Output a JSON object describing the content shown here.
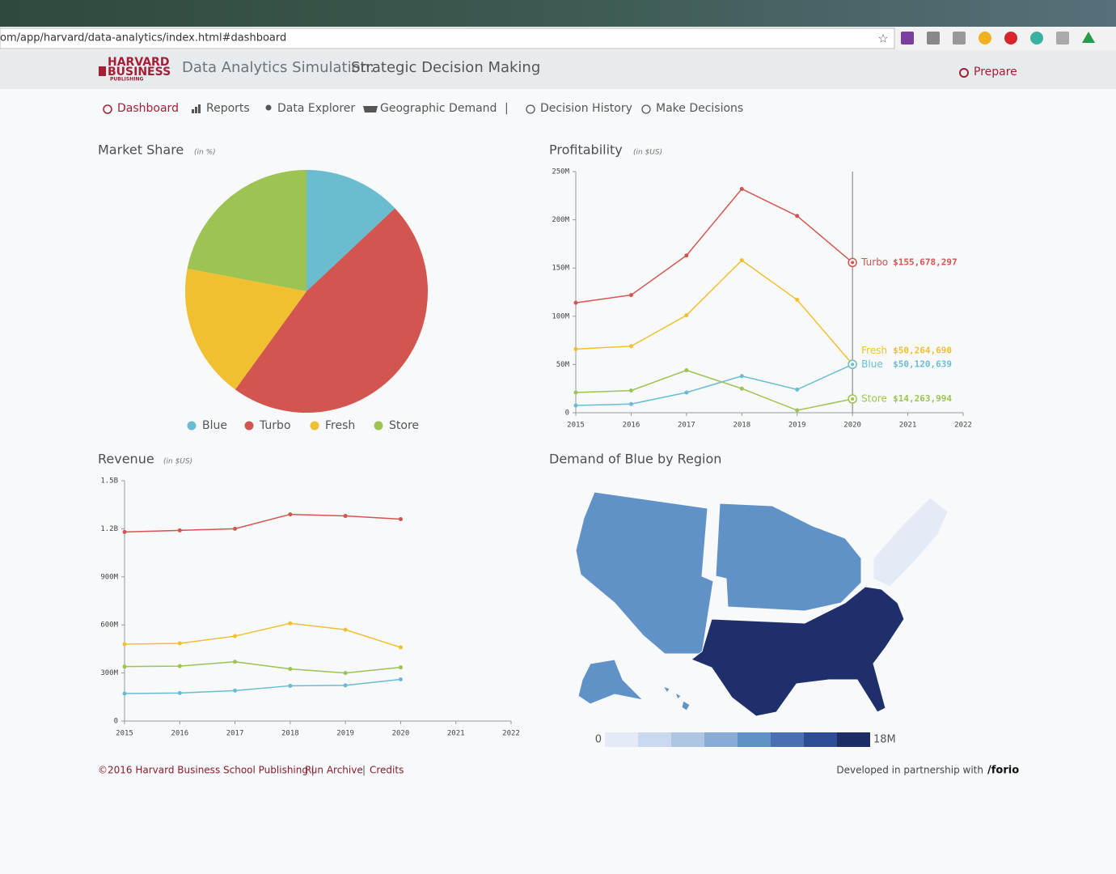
{
  "browser": {
    "url": "om/app/harvard/data-analytics/index.html#dashboard"
  },
  "header": {
    "logo": [
      "HARVARD",
      "BUSINESS",
      "PUBLISHING"
    ],
    "title": "Data Analytics Simulation:",
    "subtitle": "Strategic Decision Making",
    "action": "Prepare"
  },
  "nav": {
    "items": [
      "Dashboard",
      "Reports",
      "Data Explorer",
      "Geographic Demand",
      "|",
      "Decision History",
      "Make Decisions"
    ]
  },
  "chart_data": [
    {
      "type": "pie",
      "title": "Market Share",
      "subtitle": "(in %)",
      "categories": [
        "Blue",
        "Turbo",
        "Fresh",
        "Store"
      ],
      "values": [
        13,
        47,
        18,
        22
      ],
      "colors": [
        "#6bbcd1",
        "#d2554f",
        "#f0c030",
        "#9dc352"
      ]
    },
    {
      "type": "line",
      "title": "Profitability",
      "subtitle": "(in $US)",
      "x": [
        2015,
        2016,
        2017,
        2018,
        2019,
        2020
      ],
      "xlim": [
        2015,
        2022
      ],
      "xticks": [
        2015,
        2016,
        2017,
        2018,
        2019,
        2020,
        2021,
        2022
      ],
      "ylim": [
        0,
        250000000
      ],
      "yticks": [
        0,
        {
          "value": 50000000,
          "label": "50M"
        },
        {
          "value": 100000000,
          "label": "100M"
        },
        {
          "value": 150000000,
          "label": "150M"
        },
        {
          "value": 200000000,
          "label": "200M"
        },
        {
          "value": 250000000,
          "label": "250M"
        }
      ],
      "cursor_x": 2020,
      "series": [
        {
          "name": "Turbo",
          "color": "#d2554f",
          "values": [
            114000000,
            122000000,
            163000000,
            232000000,
            204000000,
            155678297
          ],
          "value_labels": [
            null,
            null,
            null,
            null,
            null,
            "$155,678,297"
          ]
        },
        {
          "name": "Fresh",
          "color": "#f0c030",
          "values": [
            66000000,
            69000000,
            101000000,
            158000000,
            117000000,
            50264690
          ],
          "value_labels": [
            null,
            null,
            null,
            null,
            null,
            "$50,264,690"
          ]
        },
        {
          "name": "Blue",
          "color": "#6bbcd1",
          "values": [
            7500000,
            9000000,
            21000000,
            38000000,
            24000000,
            50120639
          ],
          "value_labels": [
            null,
            null,
            null,
            null,
            null,
            "$50,120,639"
          ]
        },
        {
          "name": "Store",
          "color": "#9dc352",
          "values": [
            21000000,
            23000000,
            44000000,
            25000000,
            2500000,
            14263994
          ],
          "value_labels": [
            null,
            null,
            null,
            null,
            null,
            "$14,263,994"
          ]
        }
      ]
    },
    {
      "type": "line",
      "title": "Revenue",
      "subtitle": "(in $US)",
      "x": [
        2015,
        2016,
        2017,
        2018,
        2019,
        2020
      ],
      "xlim": [
        2015,
        2022
      ],
      "xticks": [
        2015,
        2016,
        2017,
        2018,
        2019,
        2020,
        2021,
        2022
      ],
      "ylim": [
        0,
        1500000000
      ],
      "yticks": [
        0,
        {
          "value": 300000000,
          "label": "300M"
        },
        {
          "value": 600000000,
          "label": "600M"
        },
        {
          "value": 900000000,
          "label": "900M"
        },
        {
          "value": 1200000000,
          "label": "1.2B"
        },
        {
          "value": 1500000000,
          "label": "1.5B"
        }
      ],
      "series": [
        {
          "name": "Turbo",
          "color": "#d2554f",
          "values": [
            1180000000,
            1190000000,
            1200000000,
            1290000000,
            1280000000,
            1260000000
          ]
        },
        {
          "name": "Fresh",
          "color": "#f0c030",
          "values": [
            480000000,
            485000000,
            530000000,
            610000000,
            570000000,
            460000000
          ]
        },
        {
          "name": "Store",
          "color": "#9dc352",
          "values": [
            340000000,
            343000000,
            370000000,
            325000000,
            300000000,
            335000000
          ]
        },
        {
          "name": "Blue",
          "color": "#6bbcd1",
          "values": [
            172000000,
            175000000,
            190000000,
            220000000,
            223000000,
            260000000
          ]
        }
      ]
    }
  ],
  "map": {
    "title": "Demand of Blue by Region",
    "legend": {
      "min": "0",
      "max": "18M"
    }
  },
  "footer": {
    "copyright": "©2016 Harvard Business School Publishing |",
    "links": [
      "Run Archive",
      "|",
      "Credits"
    ],
    "credit": "Developed in partnership with",
    "brand": "/forio"
  }
}
